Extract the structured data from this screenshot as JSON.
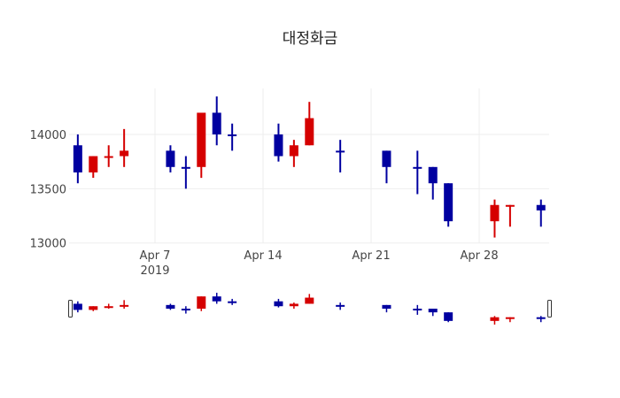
{
  "chart_data": {
    "type": "candlestick",
    "title": "대정화금",
    "xlabel": "",
    "ylabel": "",
    "ylim": [
      12990,
      14430
    ],
    "yticks": [
      13000,
      13500,
      14000
    ],
    "yticklabels": [
      "13000",
      "13500",
      "14000"
    ],
    "xticks": [
      {
        "day": 7,
        "label": "Apr 7",
        "sub": "2019"
      },
      {
        "day": 14,
        "label": "Apr 14",
        "sub": ""
      },
      {
        "day": 21,
        "label": "Apr 21",
        "sub": ""
      },
      {
        "day": 28,
        "label": "Apr 28",
        "sub": ""
      }
    ],
    "grid": true,
    "rangeslider": true,
    "colors": {
      "increasing": "#d50000",
      "decreasing": "#0000a0",
      "grid": "#eeeeee"
    },
    "candles": [
      {
        "date": "2019-04-02",
        "day": 2,
        "open": 13900,
        "high": 14000,
        "low": 13550,
        "close": 13650,
        "dir": "dec"
      },
      {
        "date": "2019-04-03",
        "day": 3,
        "open": 13650,
        "high": 13800,
        "low": 13600,
        "close": 13800,
        "dir": "inc"
      },
      {
        "date": "2019-04-04",
        "day": 4,
        "open": 13800,
        "high": 13900,
        "low": 13700,
        "close": 13800,
        "dir": "inc"
      },
      {
        "date": "2019-04-05",
        "day": 5,
        "open": 13800,
        "high": 14050,
        "low": 13700,
        "close": 13850,
        "dir": "inc"
      },
      {
        "date": "2019-04-08",
        "day": 8,
        "open": 13850,
        "high": 13900,
        "low": 13650,
        "close": 13700,
        "dir": "dec"
      },
      {
        "date": "2019-04-09",
        "day": 9,
        "open": 13700,
        "high": 13800,
        "low": 13500,
        "close": 13700,
        "dir": "dec"
      },
      {
        "date": "2019-04-10",
        "day": 10,
        "open": 13700,
        "high": 14200,
        "low": 13600,
        "close": 14200,
        "dir": "inc"
      },
      {
        "date": "2019-04-11",
        "day": 11,
        "open": 14200,
        "high": 14350,
        "low": 13900,
        "close": 14000,
        "dir": "dec"
      },
      {
        "date": "2019-04-12",
        "day": 12,
        "open": 14000,
        "high": 14100,
        "low": 13850,
        "close": 14000,
        "dir": "dec"
      },
      {
        "date": "2019-04-15",
        "day": 15,
        "open": 14000,
        "high": 14100,
        "low": 13750,
        "close": 13800,
        "dir": "dec"
      },
      {
        "date": "2019-04-16",
        "day": 16,
        "open": 13800,
        "high": 13950,
        "low": 13700,
        "close": 13900,
        "dir": "inc"
      },
      {
        "date": "2019-04-17",
        "day": 17,
        "open": 13900,
        "high": 14300,
        "low": 13900,
        "close": 14150,
        "dir": "inc"
      },
      {
        "date": "2019-04-19",
        "day": 19,
        "open": 13850,
        "high": 13950,
        "low": 13650,
        "close": 13850,
        "dir": "dec"
      },
      {
        "date": "2019-04-22",
        "day": 22,
        "open": 13850,
        "high": 13850,
        "low": 13550,
        "close": 13700,
        "dir": "dec"
      },
      {
        "date": "2019-04-24",
        "day": 24,
        "open": 13700,
        "high": 13850,
        "low": 13450,
        "close": 13700,
        "dir": "dec"
      },
      {
        "date": "2019-04-25",
        "day": 25,
        "open": 13700,
        "high": 13700,
        "low": 13400,
        "close": 13550,
        "dir": "dec"
      },
      {
        "date": "2019-04-26",
        "day": 26,
        "open": 13550,
        "high": 13550,
        "low": 13150,
        "close": 13200,
        "dir": "dec"
      },
      {
        "date": "2019-04-29",
        "day": 29,
        "open": 13200,
        "high": 13400,
        "low": 13050,
        "close": 13350,
        "dir": "inc"
      },
      {
        "date": "2019-04-30",
        "day": 30,
        "open": 13350,
        "high": 13350,
        "low": 13150,
        "close": 13350,
        "dir": "inc"
      },
      {
        "date": "2019-05-02",
        "day": 32,
        "open": 13350,
        "high": 13400,
        "low": 13150,
        "close": 13300,
        "dir": "dec"
      }
    ]
  }
}
